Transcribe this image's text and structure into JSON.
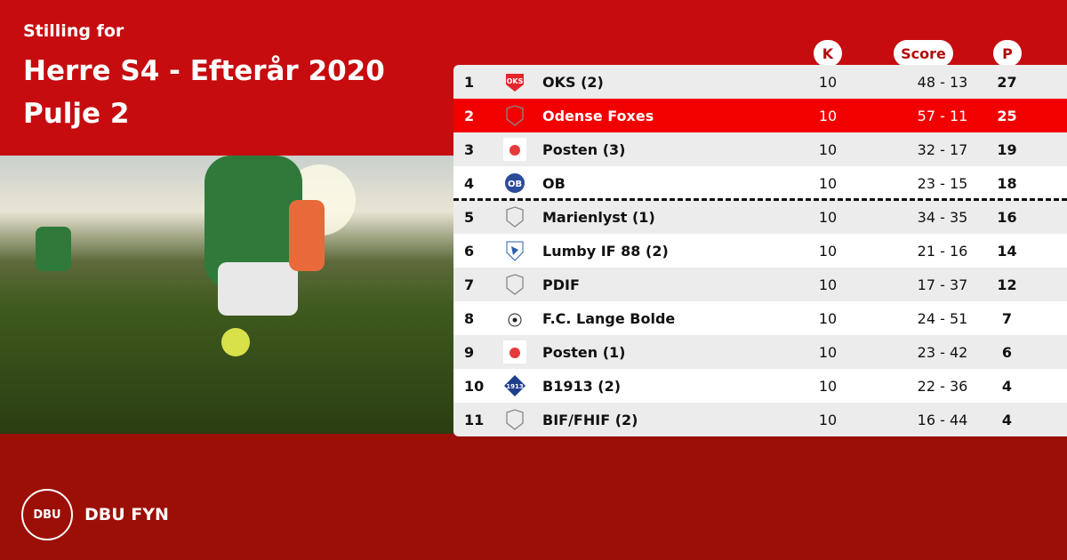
{
  "header": {
    "subtitle": "Stilling for",
    "title_line1": "Herre S4 - Efterår 2020",
    "title_line2": "Pulje 2"
  },
  "columns": {
    "k": "K",
    "score": "Score",
    "p": "P"
  },
  "rows": [
    {
      "pos": "1",
      "team": "OKS (2)",
      "k": "10",
      "score": "48 - 13",
      "p": "27",
      "logo": "oks-crest"
    },
    {
      "pos": "2",
      "team": "Odense Foxes",
      "k": "10",
      "score": "57 - 11",
      "p": "25",
      "logo": "placeholder-shield",
      "highlight": true
    },
    {
      "pos": "3",
      "team": "Posten (3)",
      "k": "10",
      "score": "32 - 17",
      "p": "19",
      "logo": "posten-crest"
    },
    {
      "pos": "4",
      "team": "OB",
      "k": "10",
      "score": "23 - 15",
      "p": "18",
      "logo": "ob-crest"
    },
    {
      "pos": "5",
      "team": "Marienlyst (1)",
      "k": "10",
      "score": "34 - 35",
      "p": "16",
      "logo": "placeholder-shield"
    },
    {
      "pos": "6",
      "team": "Lumby IF 88 (2)",
      "k": "10",
      "score": "21 - 16",
      "p": "14",
      "logo": "lumby-crest"
    },
    {
      "pos": "7",
      "team": "PDIF",
      "k": "10",
      "score": "17 - 37",
      "p": "12",
      "logo": "placeholder-shield"
    },
    {
      "pos": "8",
      "team": "F.C. Lange Bolde",
      "k": "10",
      "score": "24 - 51",
      "p": "7",
      "logo": "ball-crest"
    },
    {
      "pos": "9",
      "team": "Posten (1)",
      "k": "10",
      "score": "23 - 42",
      "p": "6",
      "logo": "posten-crest"
    },
    {
      "pos": "10",
      "team": "B1913 (2)",
      "k": "10",
      "score": "22 - 36",
      "p": "4",
      "logo": "b1913-crest"
    },
    {
      "pos": "11",
      "team": "BIF/FHIF (2)",
      "k": "10",
      "score": "16 - 44",
      "p": "4",
      "logo": "placeholder-shield"
    }
  ],
  "footer": {
    "brand": "DBU FYN",
    "logo_text": "DBU"
  },
  "colors": {
    "top": "#c60c0f",
    "bottom": "#9c0f06",
    "highlight": "#f20000"
  }
}
